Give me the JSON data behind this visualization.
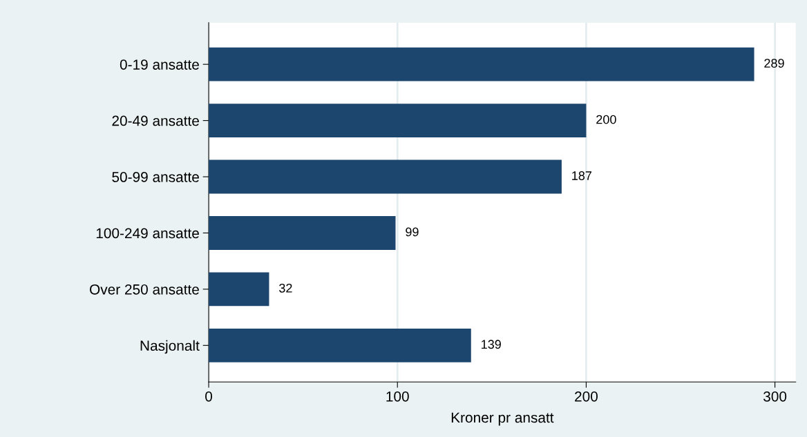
{
  "chart_data": {
    "type": "bar",
    "orientation": "horizontal",
    "categories": [
      "0-19 ansatte",
      "20-49 ansatte",
      "50-99 ansatte",
      "100-249 ansatte",
      "Over 250 ansatte",
      "Nasjonalt"
    ],
    "values": [
      289,
      200,
      187,
      99,
      32,
      139
    ],
    "color": "#1d466e",
    "xlabel": "Kroner pr ansatt",
    "xlim": [
      0,
      311
    ],
    "xticks": [
      0,
      100,
      200,
      300
    ],
    "grid": "x",
    "data_labels": true,
    "legend": false
  }
}
